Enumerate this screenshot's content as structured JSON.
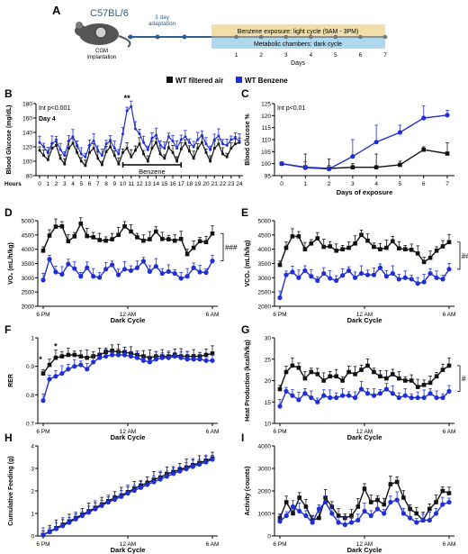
{
  "colors": {
    "black_series": "#111111",
    "blue_series": "#1f2fd6",
    "exposure_band": "#f0dfa8",
    "chamber_band": "#aed8f0",
    "timeline": "#2d5f8a"
  },
  "panel_A": {
    "letter": "A",
    "strain": "C57BL/6",
    "adaptation": [
      "3 day",
      "adaptation"
    ],
    "implant": [
      "CGM",
      "implantation"
    ],
    "exposure_label": "Benzene exposure: light cycle (9AM - 3PM)",
    "chamber_label": "Metabolic chambers: dark cycle",
    "day_ticks": [
      "1",
      "2",
      "3",
      "4",
      "5",
      "6",
      "7"
    ],
    "axis_label": "Days"
  },
  "legend": {
    "items": [
      {
        "label": "WT filtered air",
        "color": "#111111"
      },
      {
        "label": "WT Benzene",
        "color": "#1f2fd6"
      }
    ]
  },
  "chart_data": [
    {
      "id": "B",
      "type": "line",
      "ylabel": "Blood Glucose (mg/dL)",
      "xlabel": "Hours",
      "annotations": [
        "Int p<0.001",
        "Day 4",
        "**",
        "Benzene"
      ],
      "x": [
        0,
        0.5,
        1,
        1.5,
        2,
        2.5,
        3,
        3.5,
        4,
        4.5,
        5,
        5.5,
        6,
        6.5,
        7,
        7.5,
        8,
        8.5,
        9,
        9.5,
        10,
        10.5,
        11,
        11.5,
        12,
        12.5,
        13,
        13.5,
        14,
        14.5,
        15,
        15.5,
        16,
        16.5,
        17,
        17.5,
        18,
        18.5,
        19,
        19.5,
        20,
        20.5,
        21,
        21.5,
        22,
        22.5,
        23,
        23.5,
        24
      ],
      "xticks": [
        "0",
        "1",
        "2",
        "3",
        "4",
        "5",
        "6",
        "7",
        "8",
        "9",
        "10",
        "11",
        "12",
        "13",
        "14",
        "15",
        "16",
        "17",
        "18",
        "19",
        "20",
        "21",
        "22",
        "23",
        "24"
      ],
      "ylim": [
        80,
        180
      ],
      "yticks": [
        80,
        100,
        120,
        140,
        160,
        180
      ],
      "series": [
        {
          "color": "#111111",
          "values": [
            115,
            108,
            102,
            118,
            122,
            104,
            96,
            118,
            125,
            112,
            100,
            94,
            112,
            118,
            104,
            95,
            113,
            120,
            108,
            96,
            112,
            118,
            106,
            115,
            124,
            110,
            100,
            118,
            126,
            110,
            104,
            119,
            112,
            100,
            117,
            125,
            114,
            104,
            118,
            126,
            112,
            100,
            118,
            124,
            110,
            106,
            118,
            124,
            126
          ]
        },
        {
          "color": "#1f2fd6",
          "values": [
            126,
            120,
            112,
            125,
            128,
            116,
            108,
            128,
            134,
            122,
            110,
            106,
            122,
            128,
            115,
            108,
            124,
            128,
            118,
            110,
            138,
            170,
            176,
            145,
            138,
            126,
            116,
            132,
            136,
            122,
            118,
            134,
            128,
            118,
            130,
            134,
            126,
            120,
            130,
            136,
            124,
            116,
            130,
            135,
            124,
            122,
            130,
            132,
            128
          ]
        }
      ]
    },
    {
      "id": "C",
      "type": "line",
      "ylabel": "Blood Glucose %",
      "xlabel": "Days of exposure",
      "annotations": [
        "Int p<0.01"
      ],
      "x": [
        0,
        1,
        2,
        3,
        4,
        5,
        6,
        7
      ],
      "xlim": [
        0,
        7
      ],
      "ylim": [
        95,
        125
      ],
      "yticks": [
        95,
        100,
        105,
        110,
        115,
        120,
        125
      ],
      "series": [
        {
          "color": "#111111",
          "values": [
            100,
            98.5,
            98,
            98.5,
            98.5,
            99.5,
            105.8,
            104.2
          ],
          "err": [
            0.6,
            5.5,
            4,
            1.5,
            5.5,
            1.5,
            1.2,
            4.5
          ]
        },
        {
          "color": "#1f2fd6",
          "values": [
            100,
            98.3,
            97.8,
            103,
            109,
            113,
            119,
            120.2
          ],
          "err": [
            0.6,
            2.5,
            1.5,
            7,
            7,
            3,
            5,
            2
          ]
        }
      ]
    },
    {
      "id": "D",
      "type": "line",
      "ylabel": "VO₂ (mL/h/kg)",
      "xlabel": "Dark Cycle",
      "annotations": [
        "###"
      ],
      "xticks": [
        "6 PM",
        "12 AM",
        "6 AM"
      ],
      "ylim": [
        2000,
        5000
      ],
      "yticks": [
        2000,
        2500,
        3000,
        3500,
        4000,
        4500,
        5000
      ],
      "series": [
        {
          "color": "#111111",
          "values": [
            3950,
            4480,
            4790,
            4800,
            4280,
            4450,
            4900,
            4460,
            4420,
            4320,
            4300,
            4350,
            4500,
            4800,
            4620,
            4420,
            4300,
            4350,
            4620,
            4360,
            4350,
            4300,
            4360,
            3830,
            4050,
            4280,
            4250,
            4550
          ]
        },
        {
          "color": "#1f2fd6",
          "values": [
            2920,
            3650,
            3200,
            3120,
            3480,
            3320,
            3050,
            3350,
            3050,
            3010,
            3300,
            3450,
            3100,
            3300,
            3250,
            3350,
            3580,
            3220,
            3400,
            3150,
            3220,
            3150,
            2980,
            3050,
            3350,
            3200,
            3180,
            3590
          ]
        }
      ]
    },
    {
      "id": "E",
      "type": "line",
      "ylabel": "VCO₂ (mL/h/kg)",
      "xlabel": "Dark Cycle",
      "annotations": [
        "###"
      ],
      "xticks": [
        "6 PM",
        "12 AM",
        "6 AM"
      ],
      "ylim": [
        2000,
        5000
      ],
      "yticks": [
        2000,
        2500,
        3000,
        3500,
        4000,
        4500,
        5000
      ],
      "series": [
        {
          "color": "#111111",
          "values": [
            3450,
            4050,
            4450,
            4450,
            4000,
            4200,
            4380,
            4080,
            4100,
            3950,
            4000,
            4050,
            4200,
            4500,
            4300,
            4080,
            4000,
            4050,
            4280,
            4030,
            4000,
            3980,
            3850,
            3550,
            3700,
            3950,
            4100,
            4250
          ]
        },
        {
          "color": "#1f2fd6",
          "values": [
            2300,
            3100,
            3200,
            3000,
            3250,
            3050,
            2900,
            3150,
            2980,
            2900,
            3080,
            3250,
            3000,
            3150,
            3100,
            3100,
            3350,
            3050,
            3150,
            2950,
            3000,
            2950,
            2800,
            2850,
            3150,
            3000,
            2950,
            3300
          ]
        }
      ]
    },
    {
      "id": "F",
      "type": "line",
      "ylabel": "RER",
      "xlabel": "Dark Cycle",
      "annotations": [
        "*",
        "*"
      ],
      "xticks": [
        "6 PM",
        "12 AM",
        "6 AM"
      ],
      "ylim": [
        0.7,
        1.0
      ],
      "yticks": [
        0.7,
        0.8,
        0.9,
        1.0
      ],
      "series": [
        {
          "color": "#111111",
          "values": [
            0.875,
            0.905,
            0.93,
            0.935,
            0.94,
            0.94,
            0.935,
            0.93,
            0.935,
            0.94,
            0.95,
            0.955,
            0.95,
            0.95,
            0.945,
            0.94,
            0.935,
            0.93,
            0.935,
            0.935,
            0.935,
            0.94,
            0.935,
            0.935,
            0.935,
            0.935,
            0.94,
            0.945
          ]
        },
        {
          "color": "#1f2fd6",
          "values": [
            0.78,
            0.855,
            0.865,
            0.875,
            0.89,
            0.9,
            0.905,
            0.89,
            0.915,
            0.93,
            0.935,
            0.94,
            0.94,
            0.94,
            0.935,
            0.93,
            0.92,
            0.915,
            0.925,
            0.93,
            0.93,
            0.935,
            0.93,
            0.925,
            0.925,
            0.925,
            0.92,
            0.92
          ]
        }
      ]
    },
    {
      "id": "G",
      "type": "line",
      "ylabel": "Heat Production (kcal/h/kg)",
      "xlabel": "Dark Cycle",
      "annotations": [
        "#"
      ],
      "xticks": [
        "6 PM",
        "12 AM",
        "6 AM"
      ],
      "ylim": [
        10,
        30
      ],
      "yticks": [
        10,
        15,
        20,
        25,
        30
      ],
      "series": [
        {
          "color": "#111111",
          "values": [
            18,
            22,
            23.5,
            23,
            20.5,
            22,
            21.5,
            20,
            21,
            21,
            20,
            22,
            21.5,
            22.5,
            23.5,
            22,
            21,
            20.5,
            21.5,
            20.5,
            20,
            20,
            18.5,
            19,
            19.5,
            21,
            22.5,
            23.5
          ]
        },
        {
          "color": "#1f2fd6",
          "values": [
            14,
            17.5,
            16.5,
            15.5,
            17,
            16,
            15,
            16.5,
            16,
            16,
            16.5,
            16.5,
            16,
            18,
            17,
            16.5,
            17,
            18,
            17,
            16,
            16.5,
            16,
            16,
            16,
            17,
            16,
            16,
            17.5
          ]
        }
      ]
    },
    {
      "id": "H",
      "type": "line",
      "ylabel": "Cumulative Feeding (g)",
      "xlabel": "Dark Cycle",
      "xticks": [
        "6 PM",
        "12 AM",
        "6 AM"
      ],
      "ylim": [
        0,
        4
      ],
      "yticks": [
        0,
        1,
        2,
        3,
        4
      ],
      "series": [
        {
          "color": "#111111",
          "values": [
            0.05,
            0.2,
            0.35,
            0.5,
            0.65,
            0.8,
            0.95,
            1.1,
            1.25,
            1.4,
            1.55,
            1.7,
            1.8,
            1.95,
            2.1,
            2.25,
            2.35,
            2.5,
            2.6,
            2.75,
            2.85,
            2.95,
            3.05,
            3.15,
            3.25,
            3.35,
            3.45
          ]
        },
        {
          "color": "#1f2fd6",
          "values": [
            0.05,
            0.18,
            0.32,
            0.45,
            0.6,
            0.75,
            0.9,
            1.05,
            1.2,
            1.35,
            1.5,
            1.62,
            1.75,
            1.9,
            2.02,
            2.15,
            2.28,
            2.4,
            2.52,
            2.65,
            2.77,
            2.88,
            2.98,
            3.08,
            3.18,
            3.28,
            3.4
          ]
        }
      ]
    },
    {
      "id": "I",
      "type": "line",
      "ylabel": "Activity (counts)",
      "xlabel": "Dark Cycle",
      "xticks": [
        "6 PM",
        "12 AM",
        "6 AM"
      ],
      "ylim": [
        0,
        4000
      ],
      "yticks": [
        0,
        1000,
        2000,
        3000,
        4000
      ],
      "series": [
        {
          "color": "#111111",
          "values": [
            800,
            1500,
            1000,
            1700,
            1300,
            700,
            800,
            1700,
            1300,
            900,
            800,
            900,
            1300,
            2100,
            1500,
            1600,
            1400,
            2300,
            2400,
            1700,
            1200,
            1000,
            700,
            1200,
            1500,
            2000,
            1900
          ]
        },
        {
          "color": "#1f2fd6",
          "values": [
            650,
            900,
            1300,
            1100,
            900,
            600,
            1200,
            1500,
            1000,
            600,
            500,
            600,
            700,
            1100,
            900,
            1200,
            1000,
            1500,
            1600,
            1000,
            800,
            600,
            700,
            700,
            1000,
            1400,
            1500
          ]
        }
      ]
    }
  ]
}
